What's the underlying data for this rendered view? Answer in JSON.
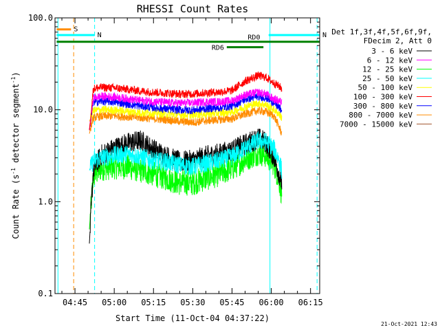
{
  "chart_data": {
    "type": "line",
    "title": "RHESSI Count Rates",
    "xlabel": "Start Time (11-Oct-04 04:37:22)",
    "ylabel": "Count Rate (s",
    "ylabel_sup1": "-1",
    "ylabel_mid": " detector segment",
    "ylabel_sup2": "-1",
    "ylabel_end": ")",
    "y_scale": "log",
    "ylim": [
      0.1,
      100
    ],
    "xlim": [
      "04:37:22",
      "06:18:30"
    ],
    "y_ticks": [
      {
        "value": 100,
        "label": "100.0"
      },
      {
        "value": 10,
        "label": "10.0"
      },
      {
        "value": 1,
        "label": "1.0"
      },
      {
        "value": 0.1,
        "label": "0.1"
      }
    ],
    "x_ticks": [
      {
        "time": "04:45",
        "label": "04:45"
      },
      {
        "time": "05:00",
        "label": "05:00"
      },
      {
        "time": "05:15",
        "label": "05:15"
      },
      {
        "time": "05:30",
        "label": "05:30"
      },
      {
        "time": "05:45",
        "label": "05:45"
      },
      {
        "time": "06:00",
        "label": "06:00"
      },
      {
        "time": "06:15",
        "label": "06:15"
      }
    ],
    "legend": {
      "placement": "right",
      "header1": "Det 1f,3f,4f,5f,6f,9f,",
      "header2": "FDecim 2, Att 0"
    },
    "data_window": [
      "04:50:30",
      "06:04:00"
    ],
    "series": [
      {
        "name": "3 - 6 keV",
        "color": "#000000",
        "points": [
          [
            "04:50:30",
            0.35
          ],
          [
            "04:52",
            2.2
          ],
          [
            "04:55",
            3.2
          ],
          [
            "05:00",
            3.8
          ],
          [
            "05:05",
            4.3
          ],
          [
            "05:10",
            4.6
          ],
          [
            "05:15",
            3.7
          ],
          [
            "05:20",
            3.1
          ],
          [
            "05:25",
            2.7
          ],
          [
            "05:30",
            2.8
          ],
          [
            "05:35",
            3.1
          ],
          [
            "05:40",
            3.3
          ],
          [
            "05:45",
            3.6
          ],
          [
            "05:50",
            4.2
          ],
          [
            "05:55",
            4.9
          ],
          [
            "05:58",
            4.4
          ],
          [
            "06:01",
            3.1
          ],
          [
            "06:03",
            2.0
          ],
          [
            "06:04",
            1.6
          ]
        ]
      },
      {
        "name": "6 - 12 keV",
        "color": "#ff00ff",
        "points": [
          [
            "04:50:30",
            6
          ],
          [
            "04:52",
            13.5
          ],
          [
            "04:55",
            14.0
          ],
          [
            "05:00",
            13.8
          ],
          [
            "05:05",
            13.2
          ],
          [
            "05:10",
            12.6
          ],
          [
            "05:15",
            12.3
          ],
          [
            "05:20",
            12.0
          ],
          [
            "05:25",
            11.8
          ],
          [
            "05:30",
            11.9
          ],
          [
            "05:35",
            12.2
          ],
          [
            "05:40",
            12.2
          ],
          [
            "05:45",
            12.5
          ],
          [
            "05:50",
            14.5
          ],
          [
            "05:55",
            15.5
          ],
          [
            "05:58",
            14.8
          ],
          [
            "06:01",
            13.0
          ],
          [
            "06:03",
            12.5
          ],
          [
            "06:04",
            12.0
          ]
        ]
      },
      {
        "name": "12 - 25 keV",
        "color": "#00ff00",
        "points": [
          [
            "04:50:30",
            0.5
          ],
          [
            "04:52",
            1.9
          ],
          [
            "04:55",
            2.3
          ],
          [
            "05:00",
            2.4
          ],
          [
            "05:05",
            2.4
          ],
          [
            "05:10",
            2.2
          ],
          [
            "05:15",
            2.0
          ],
          [
            "05:20",
            1.8
          ],
          [
            "05:25",
            1.6
          ],
          [
            "05:30",
            1.6
          ],
          [
            "05:35",
            1.8
          ],
          [
            "05:40",
            2.0
          ],
          [
            "05:45",
            2.3
          ],
          [
            "05:50",
            2.9
          ],
          [
            "05:55",
            3.4
          ],
          [
            "05:58",
            3.2
          ],
          [
            "06:01",
            2.6
          ],
          [
            "06:03",
            1.7
          ],
          [
            "06:04",
            1.2
          ]
        ]
      },
      {
        "name": "25 - 50 keV",
        "color": "#00ffff",
        "points": [
          [
            "04:50:30",
            2.2
          ],
          [
            "04:52",
            2.8
          ],
          [
            "04:55",
            3.0
          ],
          [
            "05:00",
            3.2
          ],
          [
            "05:05",
            3.3
          ],
          [
            "05:10",
            3.1
          ],
          [
            "05:15",
            2.8
          ],
          [
            "05:20",
            2.7
          ],
          [
            "05:25",
            2.5
          ],
          [
            "05:30",
            2.4
          ],
          [
            "05:35",
            2.6
          ],
          [
            "05:40",
            2.8
          ],
          [
            "05:45",
            3.1
          ],
          [
            "05:50",
            3.8
          ],
          [
            "05:55",
            4.6
          ],
          [
            "05:58",
            4.5
          ],
          [
            "06:01",
            3.8
          ],
          [
            "06:03",
            2.8
          ],
          [
            "06:04",
            2.2
          ]
        ]
      },
      {
        "name": "50 - 100 keV",
        "color": "#ffff00",
        "points": [
          [
            "04:50:30",
            7.5
          ],
          [
            "04:52",
            9.8
          ],
          [
            "04:55",
            10.0
          ],
          [
            "05:00",
            9.9
          ],
          [
            "05:05",
            9.6
          ],
          [
            "05:10",
            9.3
          ],
          [
            "05:15",
            9.2
          ],
          [
            "05:20",
            9.0
          ],
          [
            "05:25",
            8.8
          ],
          [
            "05:30",
            8.8
          ],
          [
            "05:35",
            9.0
          ],
          [
            "05:40",
            9.2
          ],
          [
            "05:45",
            9.5
          ],
          [
            "05:50",
            10.8
          ],
          [
            "05:55",
            11.8
          ],
          [
            "05:58",
            11.3
          ],
          [
            "06:01",
            10.0
          ],
          [
            "06:03",
            9.0
          ],
          [
            "06:04",
            8.2
          ]
        ]
      },
      {
        "name": "100 - 300 keV",
        "color": "#ff0000",
        "points": [
          [
            "04:50:30",
            6
          ],
          [
            "04:52",
            17.0
          ],
          [
            "04:55",
            17.5
          ],
          [
            "05:00",
            17.3
          ],
          [
            "05:05",
            16.7
          ],
          [
            "05:10",
            16.0
          ],
          [
            "05:15",
            15.5
          ],
          [
            "05:20",
            15.2
          ],
          [
            "05:25",
            14.8
          ],
          [
            "05:30",
            14.9
          ],
          [
            "05:35",
            15.3
          ],
          [
            "05:40",
            15.6
          ],
          [
            "05:45",
            16.2
          ],
          [
            "05:50",
            20.5
          ],
          [
            "05:55",
            23.5
          ],
          [
            "05:58",
            22.5
          ],
          [
            "06:01",
            19.5
          ],
          [
            "06:03",
            18.0
          ],
          [
            "06:04",
            17.0
          ]
        ]
      },
      {
        "name": "300 - 800 keV",
        "color": "#0000ff",
        "points": [
          [
            "04:50:30",
            6
          ],
          [
            "04:52",
            12.2
          ],
          [
            "04:55",
            12.4
          ],
          [
            "05:00",
            12.2
          ],
          [
            "05:05",
            11.6
          ],
          [
            "05:10",
            11.0
          ],
          [
            "05:15",
            10.6
          ],
          [
            "05:20",
            10.2
          ],
          [
            "05:25",
            10.0
          ],
          [
            "05:30",
            9.9
          ],
          [
            "05:35",
            10.3
          ],
          [
            "05:40",
            10.5
          ],
          [
            "05:45",
            11.0
          ],
          [
            "05:50",
            13.0
          ],
          [
            "05:55",
            14.0
          ],
          [
            "05:58",
            13.5
          ],
          [
            "06:01",
            12.0
          ],
          [
            "06:03",
            10.5
          ],
          [
            "06:04",
            9.8
          ]
        ]
      },
      {
        "name": "800 - 7000 keV",
        "color": "#ff8c00",
        "points": [
          [
            "04:50:30",
            5.5
          ],
          [
            "04:52",
            8.2
          ],
          [
            "04:55",
            8.5
          ],
          [
            "05:00",
            8.6
          ],
          [
            "05:05",
            8.4
          ],
          [
            "05:10",
            8.2
          ],
          [
            "05:15",
            8.0
          ],
          [
            "05:20",
            7.8
          ],
          [
            "05:25",
            7.5
          ],
          [
            "05:30",
            7.3
          ],
          [
            "05:35",
            7.6
          ],
          [
            "05:40",
            7.8
          ],
          [
            "05:45",
            8.0
          ],
          [
            "05:50",
            9.0
          ],
          [
            "05:55",
            9.8
          ],
          [
            "05:58",
            9.5
          ],
          [
            "06:01",
            8.6
          ],
          [
            "06:03",
            6.5
          ],
          [
            "06:04",
            5.5
          ]
        ]
      },
      {
        "name": "7000 - 15000 keV",
        "color": "#a0522d",
        "points": []
      }
    ],
    "segments": [
      {
        "label": "S",
        "color": "#ff8c00",
        "y": 75,
        "start": "04:38",
        "end": "04:43:30"
      },
      {
        "label": "N",
        "color": "#00ffff",
        "y": 65,
        "start": "04:38",
        "end": "04:52:30"
      },
      {
        "label": "N",
        "color": "#00ffff",
        "y": 65,
        "start": "05:59",
        "end": "06:18:30"
      },
      {
        "label": "RD0",
        "color": "#008000",
        "y": 55,
        "start": "04:38",
        "end": "06:18:30"
      },
      {
        "label": "RD6",
        "color": "#008000",
        "y": 48,
        "start": "05:43",
        "end": "05:57"
      }
    ],
    "vertical_lines": [
      {
        "time": "04:38:30",
        "color": "#00ffff",
        "style": "solid"
      },
      {
        "time": "04:44:30",
        "color": "#ff8c00",
        "style": "dashed"
      },
      {
        "time": "04:52:30",
        "color": "#00ffff",
        "style": "dashed"
      },
      {
        "time": "05:59:30",
        "color": "#00ffff",
        "style": "solid"
      },
      {
        "time": "06:17:30",
        "color": "#00ffff",
        "style": "dashed"
      }
    ]
  },
  "footer": {
    "timestamp": "21-Oct-2021 12:43"
  }
}
